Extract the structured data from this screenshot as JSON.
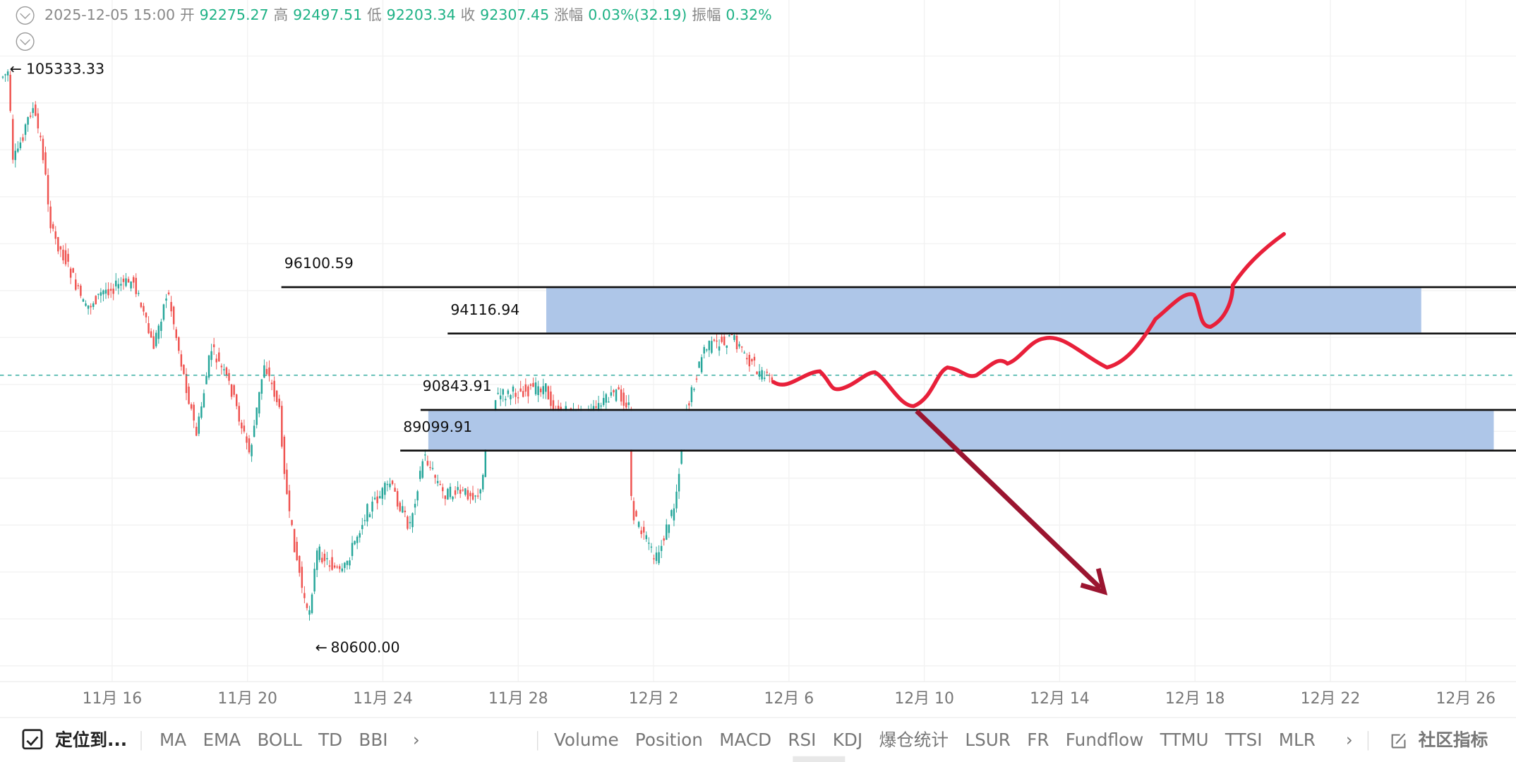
{
  "header": {
    "datetime": "2025-12-05 15:00",
    "open_label": "开",
    "open": "92275.27",
    "high_label": "高",
    "high": "92497.51",
    "low_label": "低",
    "low": "92203.34",
    "close_label": "收",
    "close": "92307.45",
    "change_label": "涨幅",
    "change": "0.03%(32.19)",
    "amplitude_label": "振幅",
    "amplitude": "0.32%"
  },
  "chart": {
    "max_label": "105333.33",
    "min_label": "80600.00",
    "levels": [
      "96100.59",
      "94116.94",
      "90843.91",
      "89099.91"
    ],
    "x_labels": [
      "11月 16",
      "11月 20",
      "11月 24",
      "11月 28",
      "12月 2",
      "12月 6",
      "12月 10",
      "12月 14",
      "12月 18",
      "12月 22",
      "12月 26"
    ]
  },
  "toolbar": {
    "locate": "定位到...",
    "main_indicators": [
      "MA",
      "EMA",
      "BOLL",
      "TD",
      "BBI"
    ],
    "sub_indicators": [
      "Volume",
      "Position",
      "MACD",
      "RSI",
      "KDJ",
      "爆仓统计",
      "LSUR",
      "FR",
      "Fundflow",
      "TTMU",
      "TTSI",
      "MLR"
    ],
    "community": "社区指标"
  }
}
